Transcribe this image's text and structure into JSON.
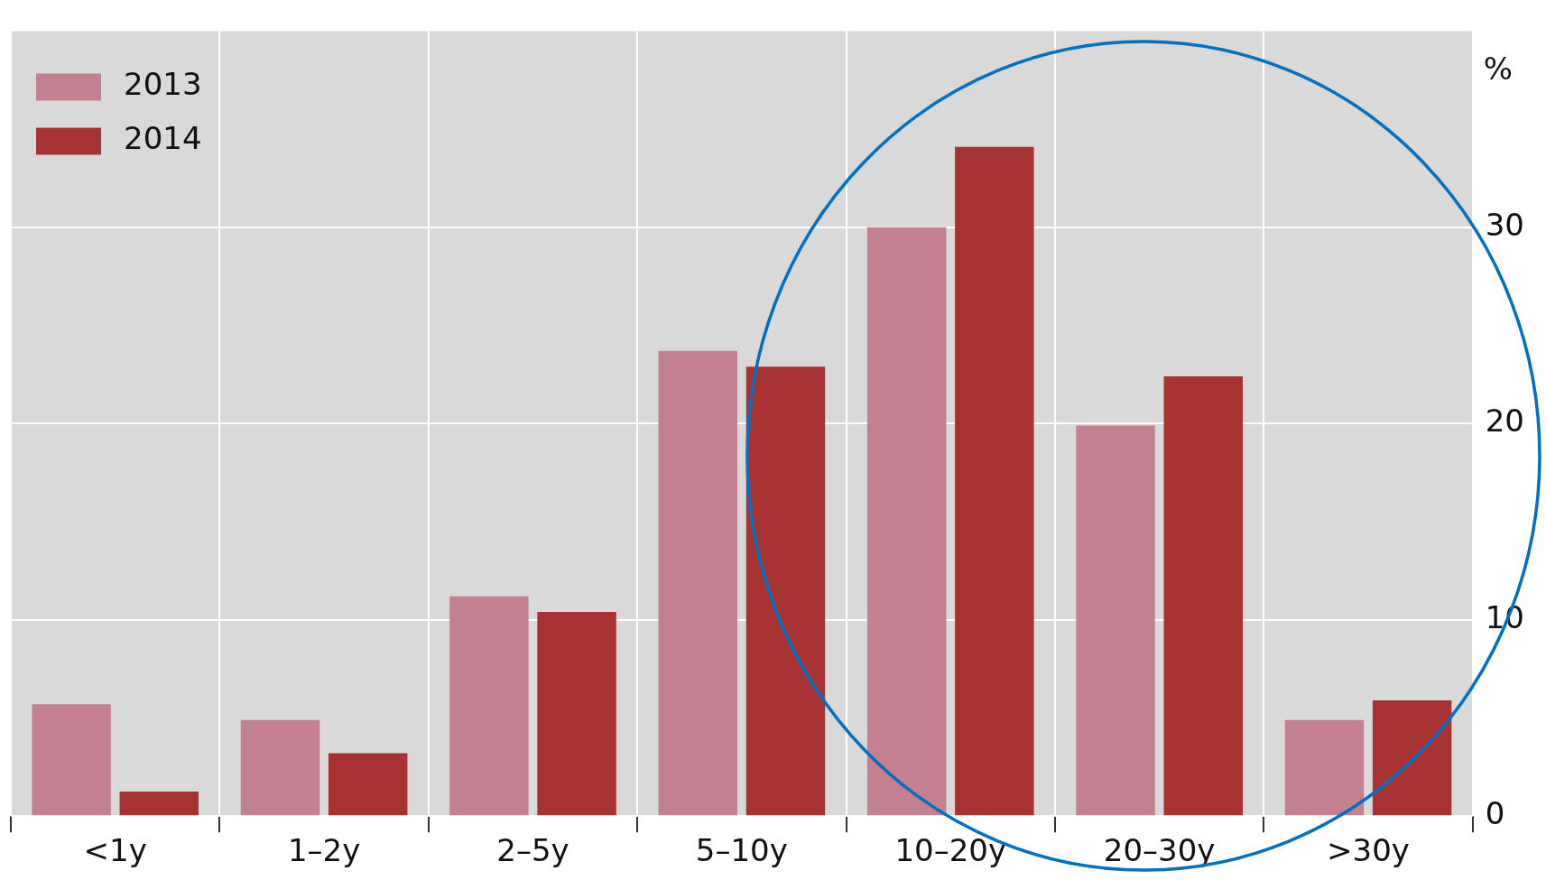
{
  "chart_data": {
    "type": "bar",
    "ylabel": "%",
    "categories": [
      "<1y",
      "1–2y",
      "2–5y",
      "5–10y",
      "10–20y",
      "20–30y",
      ">30y"
    ],
    "series": [
      {
        "name": "2013",
        "color": "#c38090",
        "values": [
          5.7,
          4.9,
          11.2,
          23.7,
          30.0,
          19.9,
          4.9
        ]
      },
      {
        "name": "2014",
        "color": "#a83232",
        "values": [
          1.25,
          3.2,
          10.4,
          22.9,
          34.1,
          22.4,
          5.9
        ]
      }
    ],
    "ylim": [
      0,
      40
    ],
    "yticks": [
      0,
      10,
      20,
      30
    ],
    "grid": true,
    "legend": "top left"
  }
}
